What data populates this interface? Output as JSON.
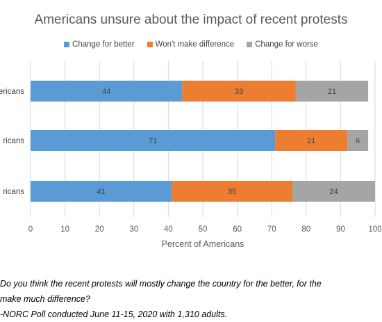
{
  "chart_data": {
    "type": "bar",
    "orientation": "horizontal",
    "stacked": true,
    "title": "Americans unsure about the impact of recent protests",
    "xlabel": "Percent of Americans",
    "xlim": [
      0,
      100
    ],
    "xticks": [
      0,
      10,
      20,
      30,
      40,
      50,
      60,
      70,
      80,
      90,
      100
    ],
    "categories": [
      "ricans",
      "ricans",
      "ricans"
    ],
    "category_labels_visible": [
      "ericans",
      "ricans",
      "ricans"
    ],
    "series": [
      {
        "name": "Change for better",
        "color": "#5B9BD5",
        "values": [
          44,
          71,
          41
        ]
      },
      {
        "name": "Won't make difference",
        "color": "#ED7D31",
        "values": [
          33,
          21,
          35
        ]
      },
      {
        "name": "Change for worse",
        "color": "#A5A5A5",
        "values": [
          21,
          6,
          24
        ]
      }
    ],
    "legend_position": "top",
    "grid": true
  },
  "footer": {
    "line1": "Do you think the recent protests will mostly change the country for the better, for the",
    "line2": " make much difference?",
    "line3": "-NORC Poll conducted June 11-15, 2020 with 1,310 adults."
  }
}
